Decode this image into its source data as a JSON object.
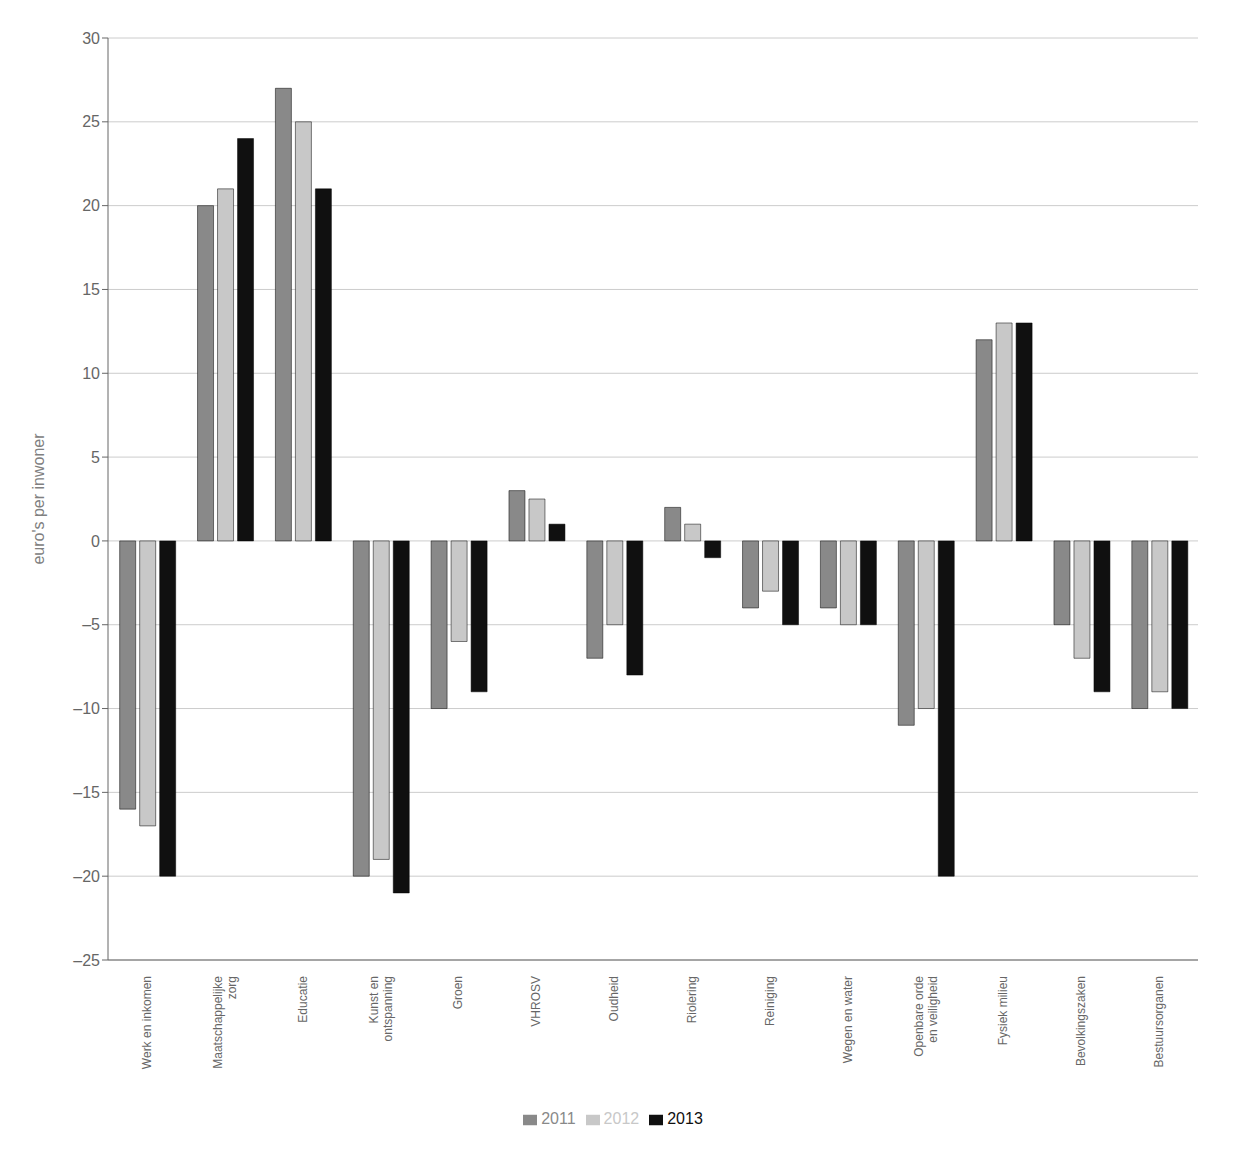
{
  "chart_data": {
    "type": "bar",
    "categories": [
      "Werk en inkomen",
      "Maatschappelijke\nzorg",
      "Educatie",
      "Kunst en\nontspanning",
      "Groen",
      "VHROSV",
      "Oudheid",
      "Riolering",
      "Reiniging",
      "Wegen en water",
      "Openbare orde\nen veiligheid",
      "Fysiek milieu",
      "Bevolkingszaken",
      "Bestuursorganen"
    ],
    "series": [
      {
        "name": "2011",
        "color": "#898989",
        "values": [
          -16,
          20,
          27,
          -20,
          -10,
          3,
          -7,
          2,
          -4,
          -4,
          -11,
          12,
          -5,
          -10
        ]
      },
      {
        "name": "2012",
        "color": "#c8c8c8",
        "values": [
          -17,
          21,
          25,
          -19,
          -6,
          2.5,
          -5,
          1,
          -3,
          -5,
          -10,
          13,
          -7,
          -9
        ]
      },
      {
        "name": "2013",
        "color": "#101010",
        "values": [
          -20,
          24,
          21,
          -21,
          -9,
          1,
          -8,
          -1,
          -5,
          -5,
          -20,
          13,
          -9,
          -10
        ]
      }
    ],
    "ylim": [
      -25,
      30
    ],
    "yticks": [
      {
        "value": -25,
        "label": "–25"
      },
      {
        "value": -20,
        "label": "–20"
      },
      {
        "value": -15,
        "label": "–15"
      },
      {
        "value": -10,
        "label": "–10"
      },
      {
        "value": -5,
        "label": "–5"
      },
      0,
      5,
      10,
      15,
      20,
      25,
      30
    ],
    "ylabel": "euro's per inwoner",
    "grid": true,
    "legend": "bottom"
  }
}
